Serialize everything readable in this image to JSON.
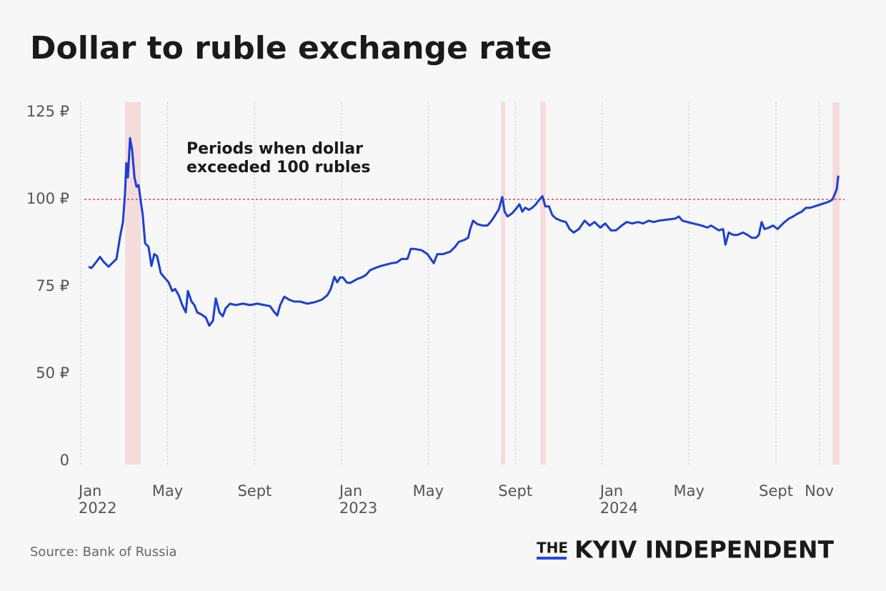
{
  "chart_data": {
    "type": "line",
    "title": "Dollar to ruble exchange rate",
    "annotation": [
      "Periods when dollar",
      "exceeded 100 rubles"
    ],
    "source": "Source: Bank of Russia",
    "brand": {
      "prefix": "THE",
      "name": "KYIV INDEPENDENT"
    },
    "color": "#1a3fd6",
    "threshold": 100,
    "threshold_color": "#e0474c",
    "highlight_color": "#f5dcdc",
    "highlight_periods": [
      [
        2022.17,
        2022.23
      ],
      [
        2023.612,
        2023.628
      ],
      [
        2023.763,
        2023.784
      ],
      [
        2024.884,
        2024.911
      ]
    ],
    "grid": true,
    "xlim": [
      2022,
      2024.93
    ],
    "xticks": [
      {
        "value": 2022,
        "label": "Jan\n2022"
      },
      {
        "value": 2022.333,
        "label": "May"
      },
      {
        "value": 2022.667,
        "label": "Sept"
      },
      {
        "value": 2023,
        "label": "Jan\n2023"
      },
      {
        "value": 2023.333,
        "label": "May"
      },
      {
        "value": 2023.667,
        "label": "Sept"
      },
      {
        "value": 2024,
        "label": "Jan\n2024"
      },
      {
        "value": 2024.333,
        "label": "May"
      },
      {
        "value": 2024.667,
        "label": "Sept"
      },
      {
        "value": 2024.833,
        "label": "Nov"
      }
    ],
    "ylim": [
      0,
      125
    ],
    "yticks": [
      0,
      {
        "value": 50,
        "label": "50 ₽"
      },
      {
        "value": 75,
        "label": "75 ₽"
      },
      {
        "value": 100,
        "label": "100 ₽"
      },
      {
        "value": 125,
        "label": "125 ₽"
      }
    ],
    "x": [
      2022.03,
      2022.041,
      2022.06,
      2022.074,
      2022.088,
      2022.107,
      2022.123,
      2022.137,
      2022.151,
      2022.162,
      2022.17,
      2022.175,
      2022.181,
      2022.189,
      2022.197,
      2022.206,
      2022.214,
      2022.222,
      2022.23,
      2022.238,
      2022.247,
      2022.26,
      2022.271,
      2022.282,
      2022.293,
      2022.307,
      2022.321,
      2022.337,
      2022.351,
      2022.362,
      2022.376,
      2022.389,
      2022.403,
      2022.411,
      2022.425,
      2022.436,
      2022.447,
      2022.463,
      2022.48,
      2022.493,
      2022.507,
      2022.518,
      2022.532,
      2022.545,
      2022.556,
      2022.573,
      2022.595,
      2022.622,
      2022.65,
      2022.677,
      2022.704,
      2022.726,
      2022.74,
      2022.754,
      2022.765,
      2022.781,
      2022.8,
      2022.82,
      2022.842,
      2022.869,
      2022.896,
      2022.924,
      2022.946,
      2022.959,
      2022.973,
      2022.984,
      2022.995,
      2023.006,
      2023.02,
      2023.033,
      2023.047,
      2023.061,
      2023.077,
      2023.094,
      2023.11,
      2023.129,
      2023.151,
      2023.171,
      2023.192,
      2023.212,
      2023.231,
      2023.253,
      2023.266,
      2023.28,
      2023.308,
      2023.33,
      2023.343,
      2023.354,
      2023.368,
      2023.39,
      2023.417,
      2023.436,
      2023.45,
      2023.472,
      2023.486,
      2023.494,
      2023.505,
      2023.521,
      2023.541,
      2023.56,
      2023.576,
      2023.59,
      2023.604,
      2023.617,
      2023.626,
      2023.637,
      2023.653,
      2023.669,
      2023.683,
      2023.694,
      2023.705,
      2023.719,
      2023.732,
      2023.746,
      2023.76,
      2023.771,
      2023.782,
      2023.796,
      2023.809,
      2023.823,
      2023.842,
      2023.861,
      2023.875,
      2023.891,
      2023.911,
      2023.933,
      2023.952,
      2023.971,
      2023.993,
      2024.012,
      2024.034,
      2024.053,
      2024.075,
      2024.094,
      2024.116,
      2024.138,
      2024.157,
      2024.179,
      2024.198,
      2024.218,
      2024.24,
      2024.262,
      2024.281,
      2024.294,
      2024.308,
      2024.327,
      2024.349,
      2024.371,
      2024.39,
      2024.404,
      2024.418,
      2024.431,
      2024.448,
      2024.464,
      2024.473,
      2024.486,
      2024.503,
      2024.519,
      2024.541,
      2024.558,
      2024.574,
      2024.59,
      2024.601,
      2024.612,
      2024.623,
      2024.64,
      2024.656,
      2024.673,
      2024.686,
      2024.7,
      2024.717,
      2024.733,
      2024.75,
      2024.766,
      2024.782,
      2024.799,
      2024.815,
      2024.832,
      2024.848,
      2024.865,
      2024.876,
      2024.884,
      2024.892,
      2024.9,
      2024.906
    ],
    "values": [
      80.7,
      80.3,
      82.1,
      83.5,
      82.1,
      80.7,
      81.9,
      82.9,
      89.4,
      93.5,
      101.8,
      110.4,
      106.3,
      117.6,
      114.2,
      106.3,
      103.6,
      104.1,
      99.6,
      95.5,
      87.4,
      86.4,
      80.9,
      84.3,
      83.7,
      78.9,
      77.6,
      76.2,
      73.7,
      74.3,
      72.5,
      69.8,
      67.6,
      73.7,
      70.7,
      69.7,
      67.6,
      67.0,
      66.1,
      63.8,
      65.2,
      71.6,
      67.6,
      66.5,
      68.8,
      70.1,
      69.7,
      70.1,
      69.7,
      70.1,
      69.7,
      69.4,
      67.9,
      66.7,
      69.7,
      72.1,
      71.2,
      70.7,
      70.7,
      70.1,
      70.5,
      71.2,
      72.5,
      74.3,
      77.8,
      76.2,
      77.6,
      77.6,
      76.2,
      76.0,
      76.6,
      77.2,
      77.6,
      78.3,
      79.7,
      80.3,
      80.9,
      81.3,
      81.7,
      81.9,
      82.9,
      82.9,
      85.8,
      85.8,
      85.4,
      84.3,
      82.9,
      81.7,
      84.3,
      84.3,
      85.0,
      86.4,
      87.8,
      88.4,
      89.0,
      91.5,
      93.9,
      92.9,
      92.5,
      92.5,
      93.9,
      95.5,
      97.2,
      100.7,
      96.5,
      95.1,
      95.9,
      97.2,
      98.6,
      96.5,
      97.6,
      97.0,
      97.6,
      98.6,
      100.0,
      100.9,
      98.0,
      98.0,
      95.5,
      94.5,
      93.9,
      93.5,
      91.5,
      90.5,
      91.5,
      93.9,
      92.5,
      93.5,
      91.9,
      93.1,
      91.1,
      91.1,
      92.5,
      93.5,
      93.1,
      93.5,
      93.1,
      93.9,
      93.5,
      93.9,
      94.1,
      94.3,
      94.5,
      95.1,
      93.9,
      93.5,
      93.1,
      92.7,
      92.3,
      91.9,
      92.5,
      91.9,
      91.1,
      91.5,
      87.0,
      90.5,
      89.8,
      89.8,
      90.5,
      89.8,
      89.0,
      89.0,
      89.8,
      93.5,
      91.5,
      91.9,
      92.5,
      91.5,
      92.5,
      93.5,
      94.5,
      95.1,
      95.9,
      96.5,
      97.6,
      97.6,
      98.0,
      98.4,
      98.8,
      99.2,
      99.6,
      100.0,
      101.4,
      103.0,
      106.8
    ]
  }
}
